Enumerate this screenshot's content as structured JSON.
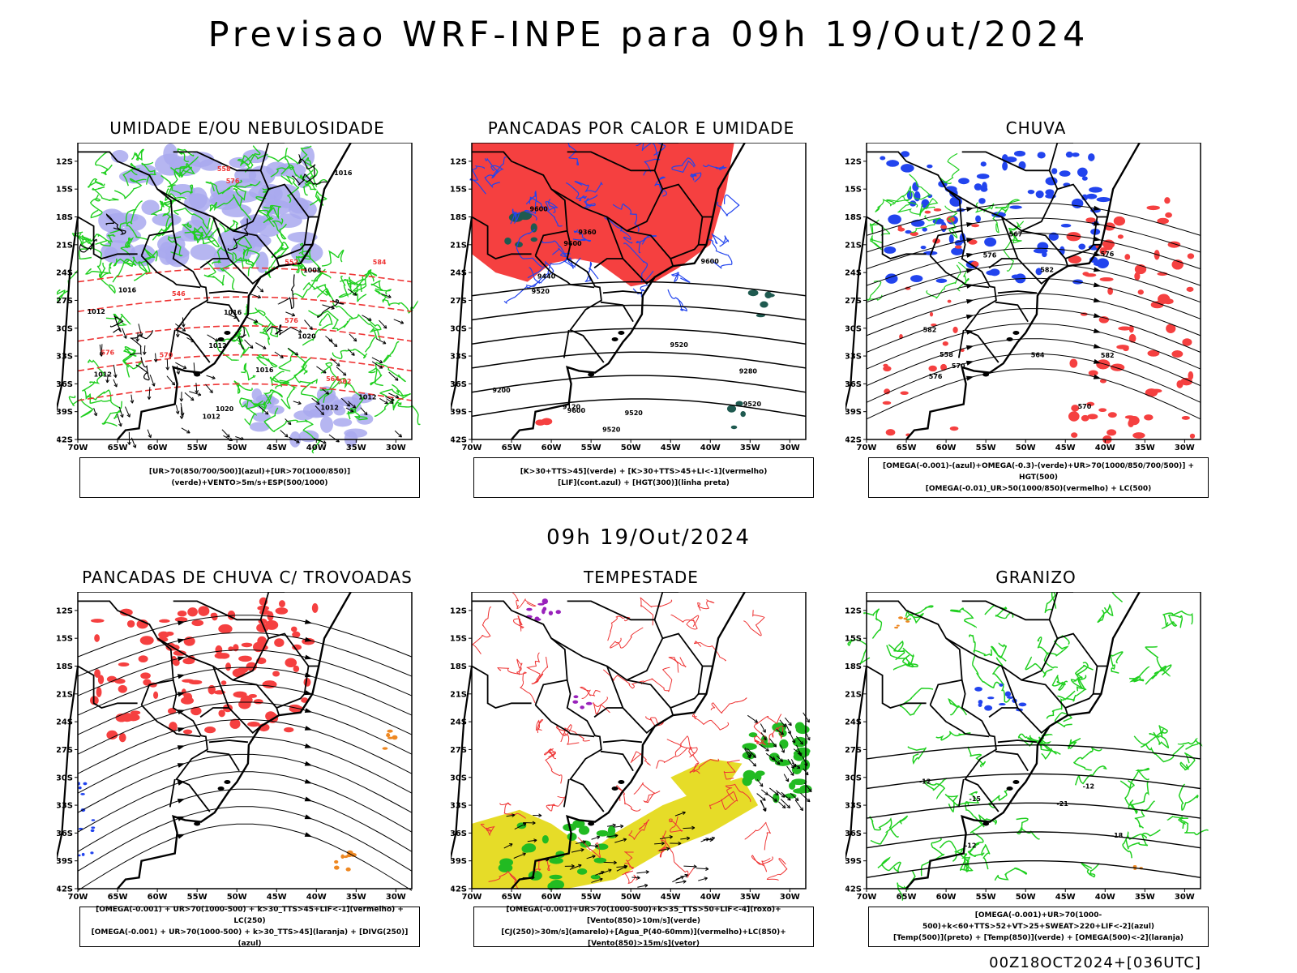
{
  "page": {
    "main_title": "Previsao WRF-INPE  para 09h 19/Out/2024",
    "mid_title": "09h 19/Out/2024",
    "footer": "00Z18OCT2024+[036UTC]"
  },
  "axes": {
    "lat_ticks": [
      "12S",
      "15S",
      "18S",
      "21S",
      "24S",
      "27S",
      "30S",
      "33S",
      "36S",
      "39S",
      "42S"
    ],
    "lon_ticks": [
      "70W",
      "65W",
      "60W",
      "55W",
      "50W",
      "45W",
      "40W",
      "35W",
      "30W"
    ],
    "lat_range": [
      -42,
      -10
    ],
    "lon_range": [
      -70,
      -28
    ]
  },
  "colors": {
    "blue_fill": "#a9a9ee",
    "green_line": "#1fcf1f",
    "red_line": "#ee3333",
    "red_fill": "#f54040",
    "blue": "#2244ee",
    "teal": "#1f5a50",
    "yellow": "#e6dc28",
    "green_fill": "#22bb22",
    "orange": "#ee8822",
    "purple": "#9922bb"
  },
  "chart_data": [
    {
      "type": "heatmap",
      "title": "UMIDADE E/OU NEBULOSIDADE",
      "legend": [
        "[UR>70(850/700/500)](azul)+[UR>70(1000/850)](verde)+VENTO>5m/s+ESP(500/1000)"
      ],
      "contour_labels": [
        "1012",
        "1020",
        "1020",
        "1012",
        "1012",
        "1016",
        "1016",
        "1016",
        "1012",
        "1012",
        "1016",
        "1008",
        "1012",
        "576",
        "570",
        "576",
        "576",
        "564",
        "558",
        "552",
        "546",
        "582",
        "584"
      ],
      "layers": [
        "blue_fill",
        "green_line",
        "red_dashed",
        "black_contours",
        "wind_vectors"
      ]
    },
    {
      "type": "heatmap",
      "title": "PANCADAS POR CALOR E UMIDADE",
      "legend": [
        "[K>30+TTS>45](verde) + [K>30+TTS>45+LI<-1](vermelho)",
        "[LIF](cont.azul) + [HGT(300)](linha preta)"
      ],
      "contour_labels": [
        "9600",
        "9600",
        "9600",
        "9600",
        "9520",
        "9520",
        "9520",
        "9520",
        "9520",
        "9440",
        "9360",
        "9280",
        "9200",
        "9120"
      ],
      "layers": [
        "red_fill",
        "teal_fill",
        "blue_contours",
        "black_contours"
      ]
    },
    {
      "type": "heatmap",
      "title": "CHUVA",
      "legend": [
        "[OMEGA(-0.001)-(azul)+OMEGA(-0.3)-(verde)+UR>70(1000/850/700/500)] + HGT(500)",
        "[OMEGA(-0.01)_UR>50(1000/850)(vermelho) + LC(500)"
      ],
      "contour_labels": [
        "582",
        "582",
        "582",
        "576",
        "576",
        "576",
        "570",
        "570",
        "567",
        "564",
        "558"
      ],
      "layers": [
        "blue_fill",
        "red_fill",
        "green_line",
        "streamlines"
      ]
    },
    {
      "type": "heatmap",
      "title": "PANCADAS DE CHUVA C/ TROVOADAS",
      "legend": [
        "[OMEGA(-0.001) + UR>70(1000-500) + k>30_TTS>45+LIF<-1](vermelho) + LC(250)",
        "[OMEGA(-0.001) + UR>70(1000-500) + k>30_TTS>45](laranja) + [DIVG(250)](azul)"
      ],
      "contour_labels": [],
      "layers": [
        "red_fill",
        "orange_fill",
        "blue_fill",
        "streamlines"
      ]
    },
    {
      "type": "heatmap",
      "title": "TEMPESTADE",
      "legend": [
        "[OMEGA(-0.001)+UR>70(1000-500)+k>35_TTS>50+LIF<-4](roxo)+[Vento(850)>10m/s](verde)",
        "[CJ(250)>30m/s](amarelo)+[Agua_P(40-60mm)](vermelho)+LC(850)+[Vento(850)>15m/s](vetor)"
      ],
      "contour_labels": [],
      "layers": [
        "yellow_fill",
        "green_fill",
        "purple_fill",
        "red_contours",
        "wind_vectors"
      ]
    },
    {
      "type": "heatmap",
      "title": "GRANIZO",
      "legend": [
        "[OMEGA(-0.001)+UR>70(1000-500)+k<60+TTS>52+VT>25+SWEAT>220+LIF<-2](azul)",
        "[Temp(500)](preto) + [Temp(850)](verde) + [OMEGA(500)<-2](laranja)"
      ],
      "contour_labels": [
        "-12",
        "-12",
        "-12",
        "-15",
        "-18",
        "-21"
      ],
      "layers": [
        "green_contours",
        "black_contours",
        "blue_fill",
        "orange_fill"
      ]
    }
  ]
}
